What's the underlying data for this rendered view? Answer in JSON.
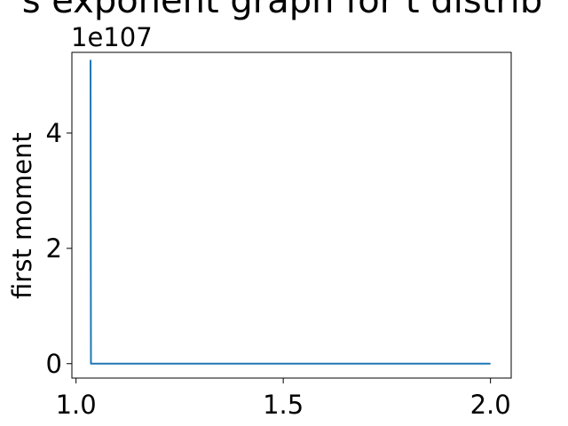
{
  "chart_data": {
    "type": "line",
    "title": "s exponent graph for t distrib",
    "xlabel": "",
    "ylabel": "first moment",
    "y_offset_label": "1e107",
    "y_scale_factor": 1e+107,
    "xlim": [
      0.99,
      2.05
    ],
    "ylim": [
      -0.25,
      5.4
    ],
    "xticks": [
      1.0,
      1.5,
      2.0
    ],
    "xtick_labels": [
      "1.0",
      "1.5",
      "2.0"
    ],
    "yticks": [
      0,
      2,
      4
    ],
    "ytick_labels": [
      "0",
      "2",
      "4"
    ],
    "grid": false,
    "series": [
      {
        "color": "#1f77b4",
        "x": [
          1.035,
          1.036,
          1.05,
          1.25,
          1.5,
          1.75,
          2.0
        ],
        "y": [
          5.27,
          0.0,
          0.0,
          0.0,
          0.0,
          0.0,
          0.0
        ]
      }
    ]
  }
}
